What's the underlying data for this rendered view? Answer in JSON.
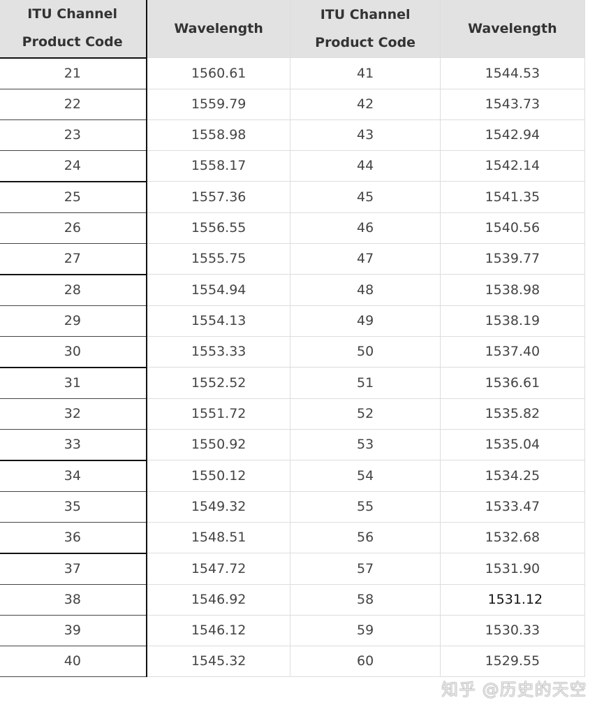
{
  "headers": [
    "ITU Channel Product Code",
    "Wavelength",
    "ITU Channel Product Code",
    "Wavelength"
  ],
  "rows": [
    [
      "21",
      "1560.61",
      "41",
      "1544.53"
    ],
    [
      "22",
      "1559.79",
      "42",
      "1543.73"
    ],
    [
      "23",
      "1558.98",
      "43",
      "1542.94"
    ],
    [
      "24",
      "1558.17",
      "44",
      "1542.14"
    ],
    [
      "25",
      "1557.36",
      "45",
      "1541.35"
    ],
    [
      "26",
      "1556.55",
      "46",
      "1540.56"
    ],
    [
      "27",
      "1555.75",
      "47",
      "1539.77"
    ],
    [
      "28",
      "1554.94",
      "48",
      "1538.98"
    ],
    [
      "29",
      "1554.13",
      "49",
      "1538.19"
    ],
    [
      "30",
      "1553.33",
      "50",
      "1537.40"
    ],
    [
      "31",
      "1552.52",
      "51",
      "1536.61"
    ],
    [
      "32",
      "1551.72",
      "52",
      "1535.82"
    ],
    [
      "33",
      "1550.92",
      "53",
      "1535.04"
    ],
    [
      "34",
      "1550.12",
      "54",
      "1534.25"
    ],
    [
      "35",
      "1549.32",
      "55",
      "1533.47"
    ],
    [
      "36",
      "1548.51",
      "56",
      "1532.68"
    ],
    [
      "37",
      "1547.72",
      "57",
      "1531.90"
    ],
    [
      "38",
      "1546.92",
      "58",
      "1531.12"
    ],
    [
      "39",
      "1546.12",
      "59",
      "1530.33"
    ],
    [
      "40",
      "1545.32",
      "60",
      "1529.55"
    ]
  ],
  "watermark": "知乎 @历史的天空",
  "colors": {
    "header_bg": "#e2e2e2",
    "text": "#444444",
    "grid": "#dddddd"
  }
}
